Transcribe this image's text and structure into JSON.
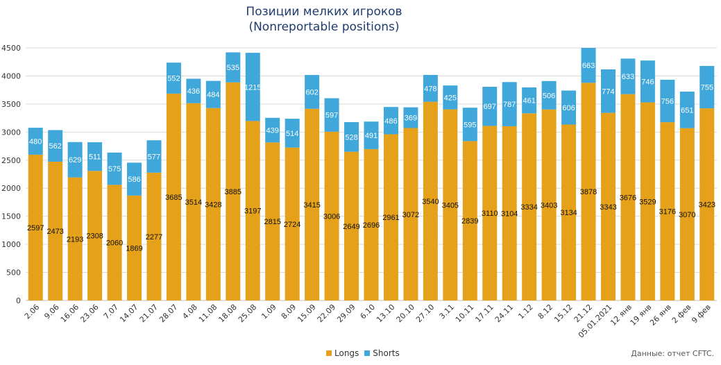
{
  "title_line1": "Позиции мелких игроков",
  "title_line2": "(Nonreportable positions)",
  "source_note": "Данные: отчет CFTC.",
  "colors": {
    "longs": "#e5a11a",
    "shorts": "#3fa7d9",
    "grid": "#d9d9d9",
    "axis_text": "#333333"
  },
  "chart_data": {
    "type": "bar",
    "stacked": true,
    "title": "Позиции мелких игроков (Nonreportable positions)",
    "xlabel": "",
    "ylabel": "",
    "ylim": [
      0,
      4500
    ],
    "yticks": [
      0,
      500,
      1000,
      1500,
      2000,
      2500,
      3000,
      3500,
      4000,
      4500
    ],
    "grid": true,
    "legend_position": "bottom",
    "categories": [
      "2.06",
      "9.06",
      "16.06",
      "23.06",
      "7.07",
      "14.07",
      "21.07",
      "28.07",
      "4.08",
      "11.08",
      "18.08",
      "25.08",
      "1.09",
      "8.09",
      "15.09",
      "22.09",
      "29.09",
      "6.10",
      "13.10",
      "20.10",
      "27.10",
      "3.11",
      "10.11",
      "17.11",
      "24.11",
      "1.12",
      "8.12",
      "15.12",
      "21.12",
      "05.01.2021",
      "12 янв",
      "19 янв",
      "26 янв",
      "2 фев",
      "9 фев"
    ],
    "series": [
      {
        "name": "Longs",
        "values": [
          2597,
          2473,
          2193,
          2308,
          2060,
          1869,
          2277,
          3685,
          3514,
          3428,
          3885,
          3197,
          2815,
          2724,
          3415,
          3006,
          2649,
          2696,
          2961,
          3072,
          3540,
          3405,
          2839,
          3110,
          3104,
          3334,
          3403,
          3134,
          3878,
          3343,
          3676,
          3529,
          3176,
          3070,
          3423
        ]
      },
      {
        "name": "Shorts",
        "values": [
          480,
          562,
          629,
          511,
          575,
          586,
          577,
          552,
          436,
          484,
          535,
          1215,
          439,
          514,
          602,
          597,
          528,
          491,
          486,
          369,
          478,
          425,
          595,
          697,
          787,
          461,
          506,
          606,
          663,
          774,
          633,
          746,
          756,
          651,
          755
        ]
      }
    ]
  }
}
